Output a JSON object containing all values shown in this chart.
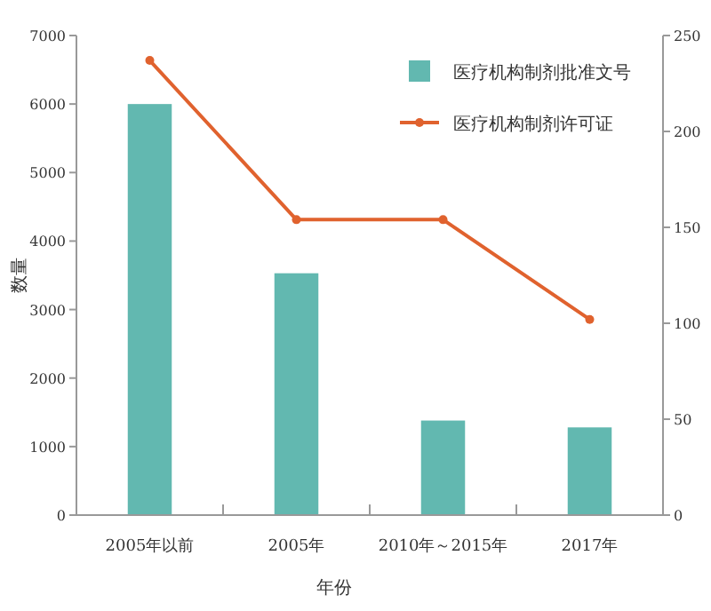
{
  "chart_data": {
    "type": "bar",
    "xlabel": "年份",
    "ylabel": "数量",
    "categories": [
      "2005年以前",
      "2005年",
      "2010年～2015年",
      "2017年"
    ],
    "series": [
      {
        "name": "医疗机构制剂批准文号",
        "color": "#62b8b0",
        "values": [
          6000,
          3530,
          1380,
          1280
        ]
      },
      {
        "name": "医疗机构制剂许可证",
        "type": "line",
        "axis": "y2",
        "color": "#e0622e",
        "values": [
          237,
          154,
          154,
          102
        ]
      }
    ],
    "ylim": [
      0,
      7000
    ],
    "yticks": [
      0,
      1000,
      2000,
      3000,
      4000,
      5000,
      6000,
      7000
    ],
    "y2lim": [
      0,
      250
    ],
    "y2ticks": [
      0,
      50,
      100,
      150,
      200,
      250
    ],
    "grid": false,
    "legend": "top right",
    "marker": "circle",
    "line_style": "solid"
  }
}
